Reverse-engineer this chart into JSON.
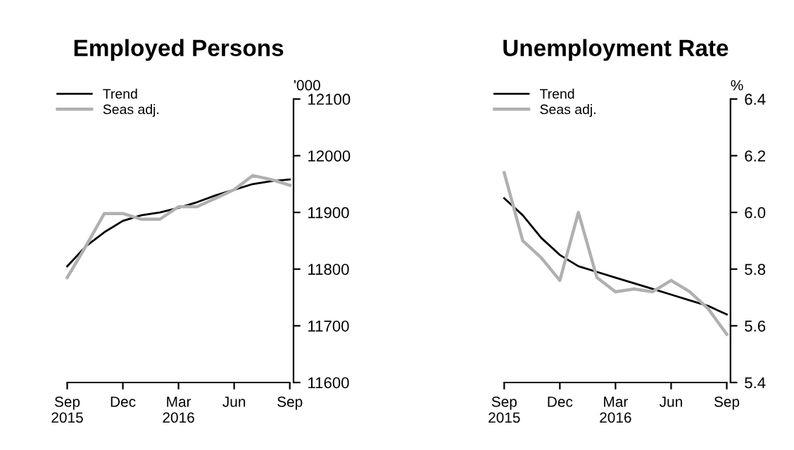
{
  "chart_data": [
    {
      "type": "line",
      "title": "Employed Persons",
      "ylabel": "'000",
      "categories": [
        "Sep\n2015",
        null,
        null,
        "Dec",
        null,
        null,
        "Mar\n2016",
        null,
        null,
        "Jun",
        null,
        null,
        "Sep"
      ],
      "series": [
        {
          "name": "Trend",
          "color": "#000000",
          "values": [
            11805,
            11840,
            11865,
            11885,
            11895,
            11900,
            11908,
            11918,
            11930,
            11940,
            11950,
            11955,
            11958
          ]
        },
        {
          "name": "Seas adj.",
          "color": "#b0b0b0",
          "values": [
            11785,
            11840,
            11898,
            11898,
            11888,
            11888,
            11910,
            11910,
            11925,
            11940,
            11965,
            11958,
            11948
          ]
        }
      ],
      "ylim": [
        11600,
        12100
      ],
      "yticks": [
        11600,
        11700,
        11800,
        11900,
        12000,
        12100
      ],
      "grid": false,
      "legend": "top left"
    },
    {
      "type": "line",
      "title": "Unemployment Rate",
      "ylabel": "%",
      "categories": [
        "Sep\n2015",
        null,
        null,
        "Dec",
        null,
        null,
        "Mar\n2016",
        null,
        null,
        "Jun",
        null,
        null,
        "Sep"
      ],
      "series": [
        {
          "name": "Trend",
          "color": "#000000",
          "values": [
            6.05,
            5.99,
            5.91,
            5.85,
            5.81,
            5.79,
            5.77,
            5.75,
            5.73,
            5.71,
            5.69,
            5.67,
            5.64
          ]
        },
        {
          "name": "Seas adj.",
          "color": "#b0b0b0",
          "values": [
            6.14,
            5.9,
            5.84,
            5.76,
            6.0,
            5.77,
            5.72,
            5.73,
            5.72,
            5.76,
            5.72,
            5.66,
            5.57
          ]
        }
      ],
      "ylim": [
        5.4,
        6.4
      ],
      "yticks": [
        {
          "value": 5.4,
          "label": "5.4"
        },
        {
          "value": 5.6,
          "label": "5.6"
        },
        {
          "value": 5.8,
          "label": "5.8"
        },
        {
          "value": 6.0,
          "label": "6.0"
        },
        {
          "value": 6.2,
          "label": "6.2"
        },
        {
          "value": 6.4,
          "label": "6.4"
        }
      ],
      "grid": false,
      "legend": "top left"
    }
  ]
}
